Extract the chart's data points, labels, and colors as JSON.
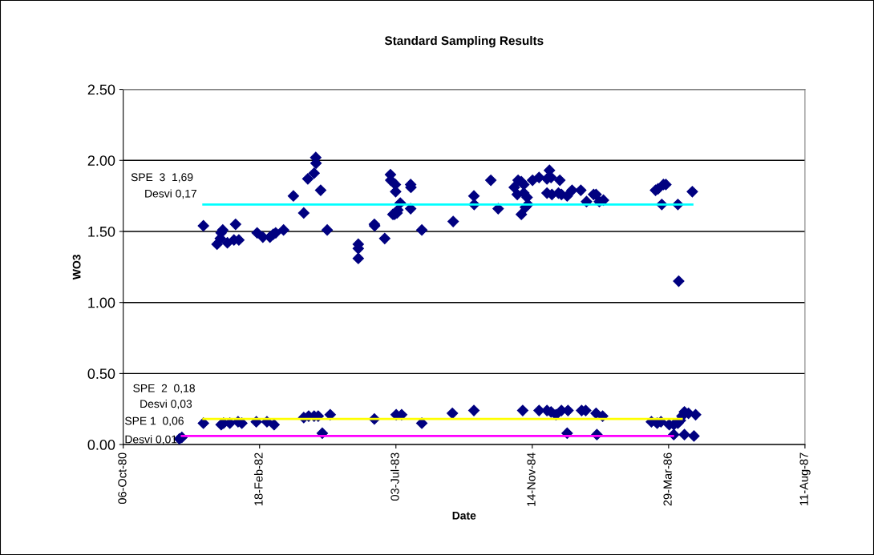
{
  "chart_data": {
    "type": "scatter",
    "title": "Standard Sampling Results",
    "xlabel": "Date",
    "ylabel": "WO3",
    "xlim": [
      "1980-10-06",
      "1987-08-11"
    ],
    "xticks": [
      {
        "value": "1980-10-06",
        "label": "06-Oct-80"
      },
      {
        "value": "1982-02-18",
        "label": "18-Feb-82"
      },
      {
        "value": "1983-07-03",
        "label": "03-Jul-83"
      },
      {
        "value": "1984-11-14",
        "label": "14-Nov-84"
      },
      {
        "value": "1986-03-29",
        "label": "29-Mar-86"
      },
      {
        "value": "1987-08-11",
        "label": "11-Aug-87"
      }
    ],
    "ylim": [
      0,
      2.5
    ],
    "yticks": [
      {
        "value": 0,
        "label": "0.00"
      },
      {
        "value": 0.5,
        "label": "0.50"
      },
      {
        "value": 1,
        "label": "1.00"
      },
      {
        "value": 1.5,
        "label": "1.50"
      },
      {
        "value": 2,
        "label": "2.00"
      },
      {
        "value": 2.5,
        "label": "2.50"
      }
    ],
    "grid": "y",
    "legend": false,
    "series": [
      {
        "color": "#000080",
        "marker": "diamond",
        "x": [
          "1981-07-27",
          "1981-09-15",
          "1981-09-27",
          "1981-09-30",
          "1981-10-06",
          "1981-10-23",
          "1981-11-16",
          "1981-11-22",
          "1981-12-04",
          "1982-02-09",
          "1982-03-02",
          "1982-03-28",
          "1982-04-09",
          "1982-04-18",
          "1982-05-17",
          "1982-06-22",
          "1982-07-30",
          "1982-08-14",
          "1982-09-06",
          "1982-09-12",
          "1982-09-13",
          "1982-09-30",
          "1982-10-24",
          "1983-02-15",
          "1983-02-15",
          "1983-02-15",
          "1983-04-15",
          "1983-04-16",
          "1983-05-23",
          "1983-06-13",
          "1983-06-14",
          "1983-06-22",
          "1983-06-28",
          "1983-07-01",
          "1983-07-02",
          "1983-07-07",
          "1983-07-10",
          "1983-07-19",
          "1983-08-26",
          "1983-08-27",
          "1983-08-26",
          "1983-10-06",
          "1984-01-29",
          "1984-04-14",
          "1984-04-15",
          "1984-06-15",
          "1984-07-12",
          "1984-09-09",
          "1984-09-20",
          "1984-09-23",
          "1984-10-05",
          "1984-10-05",
          "1984-10-14",
          "1984-10-14",
          "1984-10-20",
          "1984-10-26",
          "1984-10-29",
          "1984-11-15",
          "1984-12-09",
          "1985-01-07",
          "1985-01-07",
          "1985-01-16",
          "1985-01-22",
          "1985-01-25",
          "1985-02-18",
          "1985-02-23",
          "1985-03-01",
          "1985-03-22",
          "1985-04-09",
          "1985-05-11",
          "1985-06-01",
          "1985-06-27",
          "1985-07-06",
          "1985-07-18",
          "1985-08-02",
          "1986-02-09",
          "1986-02-18",
          "1986-03-04",
          "1986-03-10",
          "1986-03-19",
          "1986-05-02",
          "1986-05-05",
          "1986-06-24",
          "1981-04-30",
          "1981-05-09",
          "1981-07-27",
          "1981-09-30",
          "1981-10-09",
          "1981-11-01",
          "1981-12-01",
          "1981-12-15",
          "1982-02-06",
          "1982-03-17",
          "1982-04-12",
          "1982-07-30",
          "1982-08-17",
          "1982-09-06",
          "1982-09-21",
          "1982-10-06",
          "1982-11-04",
          "1983-04-15",
          "1983-07-04",
          "1983-07-24",
          "1983-10-06",
          "1984-01-26",
          "1984-04-14",
          "1984-10-10",
          "1984-12-09",
          "1985-01-07",
          "1985-01-22",
          "1985-02-09",
          "1985-03-01",
          "1985-03-22",
          "1985-03-25",
          "1985-05-14",
          "1985-05-29",
          "1985-07-06",
          "1985-07-09",
          "1985-07-30",
          "1986-01-25",
          "1986-02-15",
          "1986-03-01",
          "1986-03-31",
          "1986-04-17",
          "1986-04-17",
          "1986-05-02",
          "1986-05-11",
          "1986-05-17",
          "1986-05-26",
          "1986-05-26",
          "1986-06-10",
          "1986-06-30",
          "1986-07-06"
        ],
        "values": [
          1.54,
          1.41,
          1.45,
          1.49,
          1.51,
          1.42,
          1.44,
          1.55,
          1.44,
          1.49,
          1.46,
          1.46,
          1.48,
          1.49,
          1.51,
          1.75,
          1.63,
          1.87,
          1.91,
          2.02,
          1.98,
          1.79,
          1.51,
          1.41,
          1.38,
          1.31,
          1.55,
          1.54,
          1.45,
          1.9,
          1.86,
          1.62,
          1.62,
          1.83,
          1.78,
          1.63,
          1.65,
          1.7,
          1.83,
          1.81,
          1.66,
          1.51,
          1.57,
          1.75,
          1.69,
          1.86,
          1.66,
          1.81,
          1.76,
          1.86,
          1.85,
          1.62,
          1.83,
          1.77,
          1.67,
          1.74,
          1.69,
          1.86,
          1.88,
          1.87,
          1.77,
          1.93,
          1.88,
          1.76,
          1.77,
          1.86,
          1.76,
          1.75,
          1.79,
          1.79,
          1.71,
          1.76,
          1.76,
          1.71,
          1.72,
          1.79,
          1.8,
          1.69,
          1.83,
          1.83,
          1.69,
          1.15,
          1.78,
          0.04,
          0.05,
          0.15,
          0.14,
          0.15,
          0.15,
          0.16,
          0.15,
          0.16,
          0.16,
          0.14,
          0.19,
          0.2,
          0.2,
          0.2,
          0.08,
          0.21,
          0.18,
          0.21,
          0.21,
          0.15,
          0.22,
          0.24,
          0.24,
          0.24,
          0.24,
          0.23,
          0.21,
          0.24,
          0.08,
          0.24,
          0.24,
          0.24,
          0.22,
          0.07,
          0.2,
          0.16,
          0.15,
          0.16,
          0.14,
          0.14,
          0.07,
          0.15,
          0.17,
          0.2,
          0.23,
          0.07,
          0.22,
          0.06,
          0.21
        ]
      },
      {
        "type": "line",
        "color": "#00ffff",
        "x": [
          "1981-07-27",
          "1986-06-24"
        ],
        "values": [
          1.69,
          1.69
        ]
      },
      {
        "type": "line",
        "color": "#ffff00",
        "x": [
          "1981-07-27",
          "1986-05-16"
        ],
        "values": [
          0.18,
          0.18
        ]
      },
      {
        "type": "line",
        "color": "#ff00ff",
        "x": [
          "1981-05-09",
          "1986-04-14"
        ],
        "values": [
          0.06,
          0.06
        ]
      }
    ],
    "annotations": [
      "SPE  3  1,69",
      "Desvi 0,17",
      "SPE  2  0,18",
      "Desvi 0,03",
      "SPE 1  0,06",
      "Desvi 0,01"
    ]
  }
}
